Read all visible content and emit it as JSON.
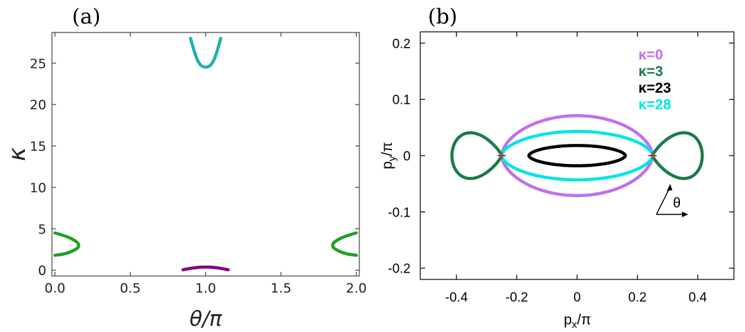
{
  "chart_data": [
    {
      "panel_label": "(a)",
      "type": "line",
      "xlabel": "θ/π",
      "ylabel": "κ",
      "xlim": [
        -0.02,
        2.02
      ],
      "ylim": [
        -0.7,
        28.7
      ],
      "xticks": [
        0.0,
        0.5,
        1.0,
        1.5,
        2.0
      ],
      "xtick_labels": [
        "0.0",
        "0.5",
        "1.0",
        "1.5",
        "2.0"
      ],
      "yticks": [
        0,
        5,
        10,
        15,
        20,
        25
      ],
      "ytick_labels": [
        "0",
        "5",
        "10",
        "15",
        "20",
        "25"
      ],
      "series": [
        {
          "name": "cyan-branch",
          "color": "#20b0b0",
          "x": [
            0.9,
            0.93,
            0.96,
            1.0,
            1.04,
            1.07,
            1.1
          ],
          "y": [
            28.0,
            26.0,
            24.8,
            24.4,
            24.8,
            26.0,
            28.0
          ]
        },
        {
          "name": "green-branch-left",
          "color": "#20a020",
          "x": [
            0.0,
            0.08,
            0.15,
            0.16,
            0.15,
            0.08,
            0.0
          ],
          "y": [
            4.5,
            4.1,
            3.4,
            3.0,
            2.6,
            2.0,
            1.8
          ]
        },
        {
          "name": "green-branch-right",
          "color": "#20a020",
          "x": [
            2.0,
            1.92,
            1.85,
            1.84,
            1.85,
            1.92,
            2.0
          ],
          "y": [
            4.5,
            4.1,
            3.4,
            3.0,
            2.6,
            2.0,
            1.8
          ]
        },
        {
          "name": "purple-branch",
          "color": "#800080",
          "x": [
            0.85,
            0.92,
            1.0,
            1.08,
            1.15
          ],
          "y": [
            0.05,
            0.3,
            0.4,
            0.3,
            0.05
          ]
        }
      ]
    },
    {
      "panel_label": "(b)",
      "type": "line",
      "xlabel": "pₓ/π",
      "ylabel": "p_y/π",
      "xlim": [
        -0.52,
        0.52
      ],
      "ylim": [
        -0.22,
        0.22
      ],
      "xticks": [
        -0.4,
        -0.2,
        0,
        0.2,
        0.4
      ],
      "xtick_labels": [
        "-0.4",
        "-0.2",
        "0",
        "0.2",
        "0.4"
      ],
      "yticks": [
        -0.2,
        -0.1,
        0,
        0.1,
        0.2
      ],
      "ytick_labels": [
        "-0.2",
        "-0.1",
        "0",
        "0.1",
        "0.2"
      ],
      "legend": [
        {
          "label": "κ=0",
          "color": "#c06ff0"
        },
        {
          "label": "κ=3",
          "color": "#1b7a4a"
        },
        {
          "label": "κ=23",
          "color": "#000000"
        },
        {
          "label": "κ=28",
          "color": "#00e5e5"
        }
      ],
      "series": [
        {
          "name": "κ=0",
          "shape": "lens",
          "color": "#c06ff0",
          "x_half_width": 0.25,
          "y_peak": 0.071
        },
        {
          "name": "κ=3",
          "shape": "figure-eight-lobes",
          "color": "#1b7a4a",
          "x_inner": 0.25,
          "x_outer": 0.415,
          "x_lobe_center": 0.36,
          "y_peak": 0.043
        },
        {
          "name": "κ=23",
          "shape": "lens",
          "color": "#000000",
          "x_half_width": 0.16,
          "y_peak": 0.018,
          "center_y": 0.0
        },
        {
          "name": "κ=28",
          "shape": "lens",
          "color": "#00e5e5",
          "x_half_width": 0.25,
          "y_peak": 0.043
        }
      ],
      "markers": [
        {
          "name": "left-node",
          "x": -0.25,
          "y": 0,
          "color": "#d02020"
        },
        {
          "name": "right-node",
          "x": 0.25,
          "y": 0,
          "color": "#d02020"
        }
      ],
      "annotation": "θ"
    }
  ]
}
